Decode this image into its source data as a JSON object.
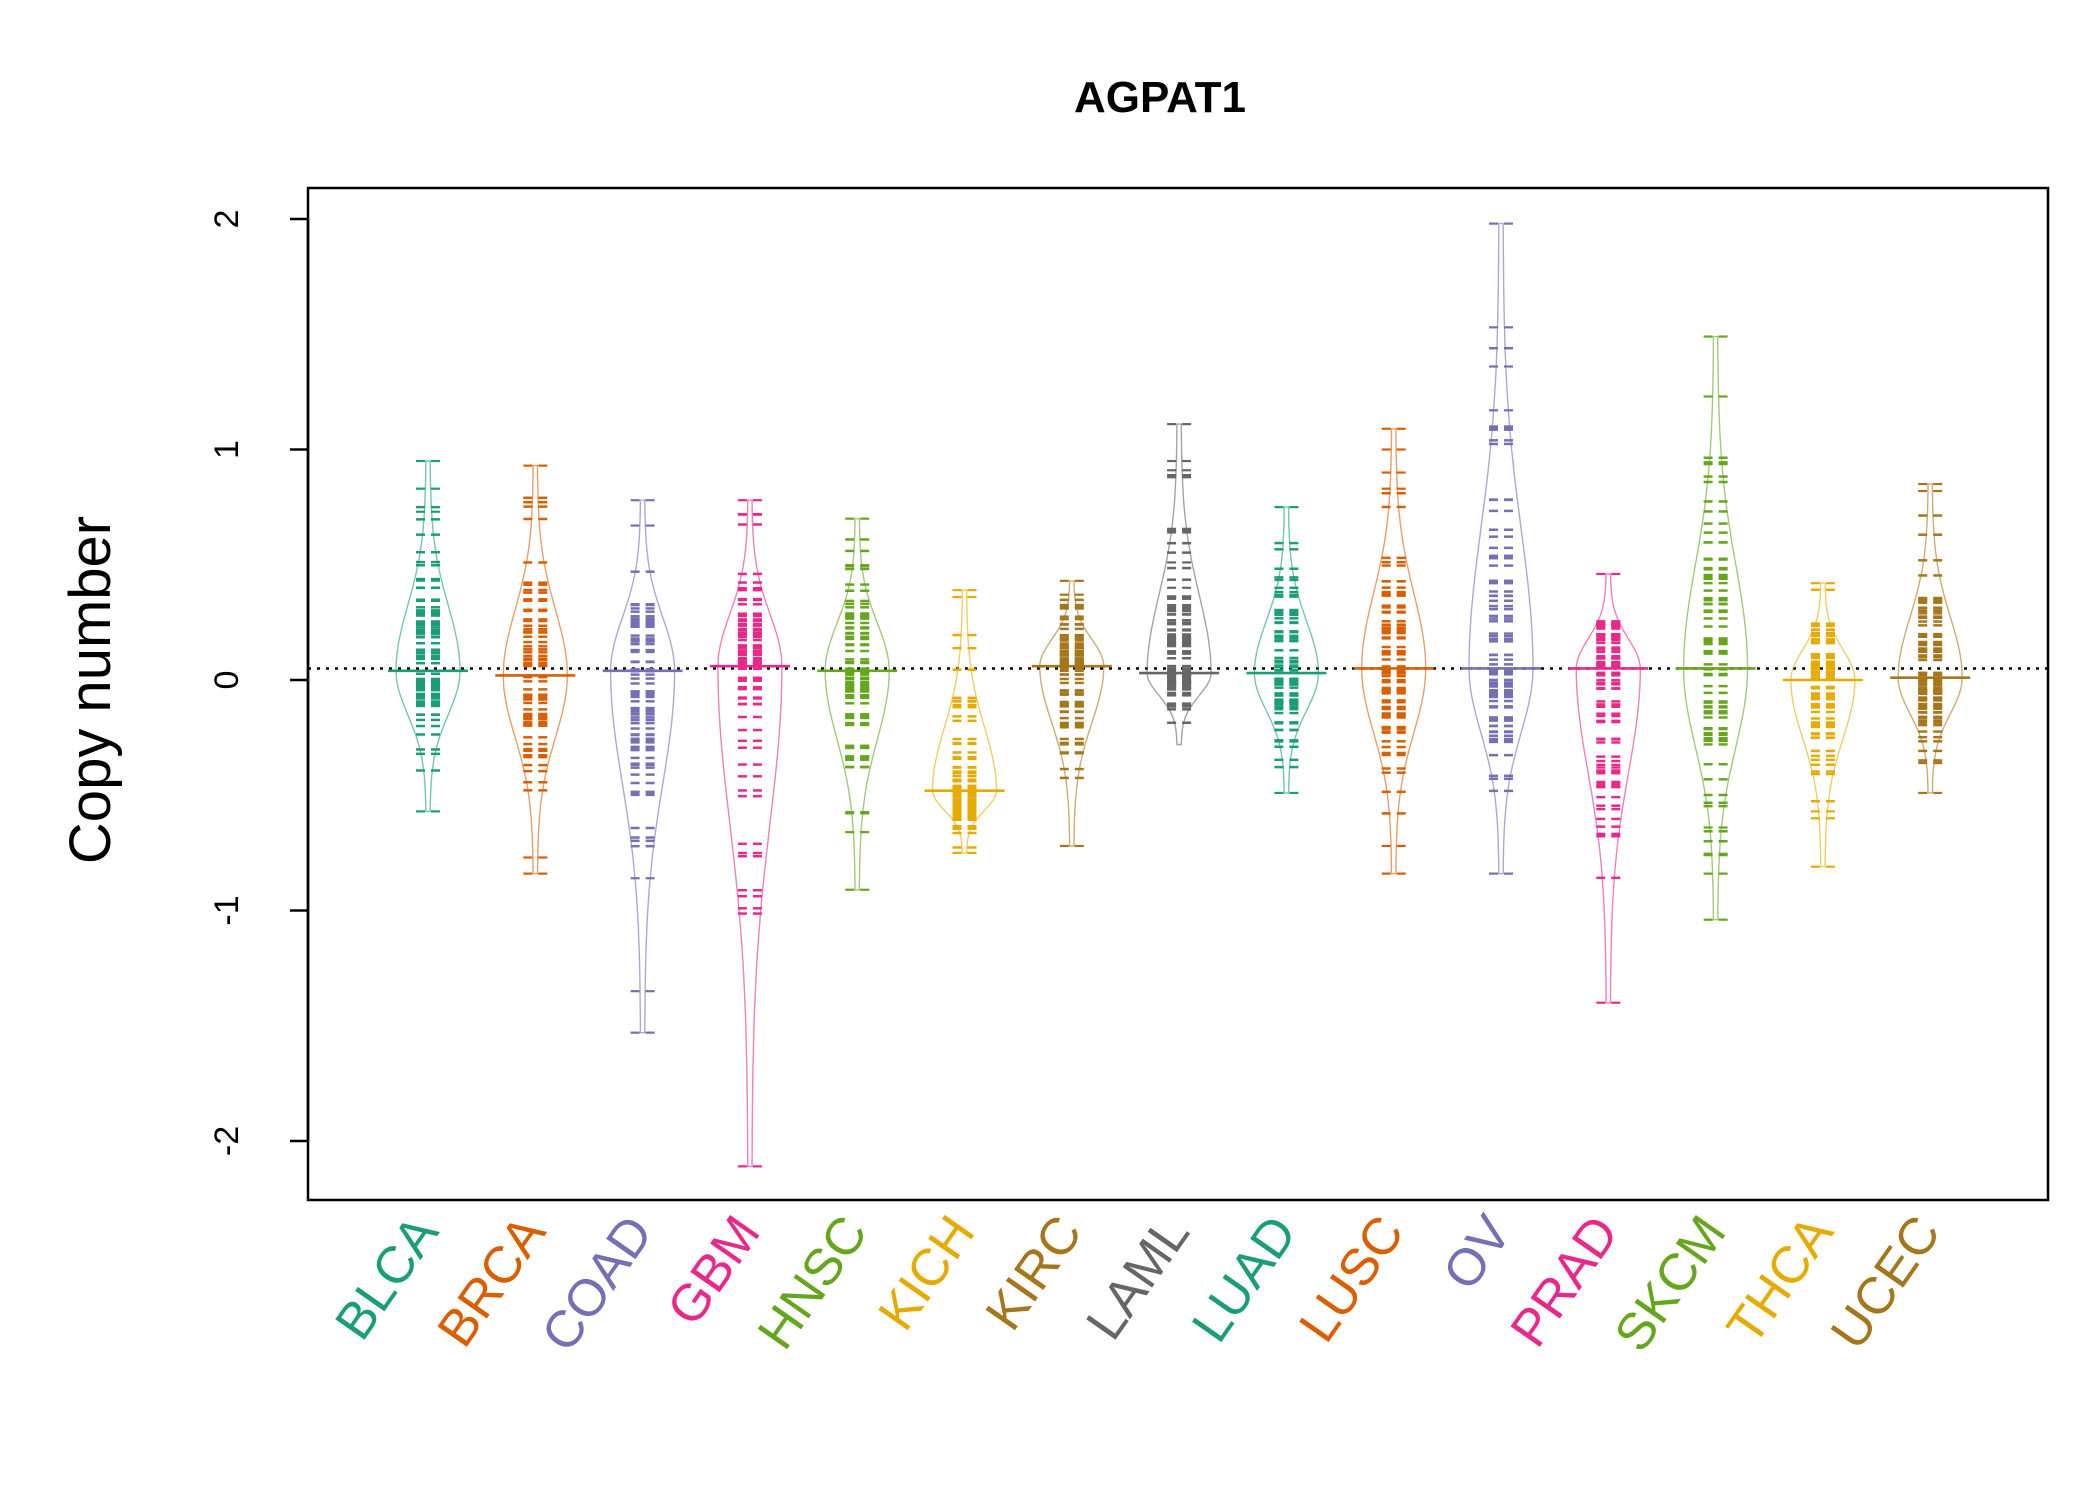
{
  "chart_data": {
    "type": "beanplot",
    "title": "AGPAT1",
    "xlabel": "",
    "ylabel": "Copy number",
    "ylim": [
      -2.25,
      2.1
    ],
    "yticks": [
      "-2",
      "-1",
      "0",
      "1",
      "2"
    ],
    "reference_line": 0.05,
    "grid": false,
    "legend": "none",
    "categories": [
      "BLCA",
      "BRCA",
      "COAD",
      "GBM",
      "HNSC",
      "KICH",
      "KIRC",
      "LAML",
      "LUAD",
      "LUSC",
      "OV",
      "PRAD",
      "SKCM",
      "THCA",
      "UCEC"
    ],
    "colors": [
      "#1B9E77",
      "#D95F02",
      "#7570B3",
      "#E7298A",
      "#66A61E",
      "#E6AB02",
      "#A6761D",
      "#666666",
      "#1B9E77",
      "#D95F02",
      "#7570B3",
      "#E7298A",
      "#66A61E",
      "#E6AB02",
      "#A6761D"
    ],
    "series": [
      {
        "category": "BLCA",
        "median": 0.04,
        "min": -0.57,
        "max": 0.95,
        "outliers": [
          0.95,
          0.83,
          0.73,
          -0.57
        ]
      },
      {
        "category": "BRCA",
        "median": 0.02,
        "min": -0.84,
        "max": 0.93,
        "outliers": [
          0.93,
          -0.77,
          -0.84
        ]
      },
      {
        "category": "COAD",
        "median": 0.04,
        "min": -1.53,
        "max": 0.78,
        "outliers": [
          0.78,
          0.67,
          -0.86,
          -1.35,
          -1.53
        ]
      },
      {
        "category": "GBM",
        "median": 0.06,
        "min": -2.11,
        "max": 0.78,
        "outliers": [
          0.78,
          0.72,
          -2.11
        ]
      },
      {
        "category": "HNSC",
        "median": 0.04,
        "min": -0.91,
        "max": 0.7,
        "outliers": [
          0.7,
          -0.66,
          -0.91
        ]
      },
      {
        "category": "KICH",
        "median": -0.48,
        "min": -0.75,
        "max": 0.39,
        "outliers": [
          0.39,
          0.36,
          -0.75
        ]
      },
      {
        "category": "KIRC",
        "median": 0.06,
        "min": -0.72,
        "max": 0.43,
        "outliers": [
          0.43,
          0.37,
          -0.72
        ]
      },
      {
        "category": "LAML",
        "median": 0.03,
        "min": -0.28,
        "max": 1.11,
        "outliers": [
          1.11,
          0.95,
          0.91,
          0.64,
          0.51,
          0.4
        ]
      },
      {
        "category": "LUAD",
        "median": 0.03,
        "min": -0.49,
        "max": 0.75,
        "outliers": [
          0.75,
          -0.49
        ]
      },
      {
        "category": "LUSC",
        "median": 0.05,
        "min": -0.84,
        "max": 1.09,
        "outliers": [
          1.09,
          1.0,
          0.9,
          0.83,
          -0.72,
          -0.84
        ]
      },
      {
        "category": "OV",
        "median": 0.05,
        "min": -0.84,
        "max": 1.98,
        "outliers": [
          1.98,
          1.53,
          1.36,
          1.17,
          1.1,
          -0.84
        ]
      },
      {
        "category": "PRAD",
        "median": 0.05,
        "min": -1.4,
        "max": 0.46,
        "outliers": [
          0.46,
          -0.38,
          -1.4
        ]
      },
      {
        "category": "SKCM",
        "median": 0.05,
        "min": -1.04,
        "max": 1.49,
        "outliers": [
          1.49,
          1.23,
          -0.64,
          -0.76,
          -0.84,
          -1.04
        ]
      },
      {
        "category": "THCA",
        "median": 0.0,
        "min": -0.81,
        "max": 0.42,
        "outliers": [
          0.42,
          -0.57,
          -0.6,
          -0.81
        ]
      },
      {
        "category": "UCEC",
        "median": 0.01,
        "min": -0.49,
        "max": 0.85,
        "outliers": [
          0.85,
          0.82,
          -0.49
        ]
      }
    ]
  }
}
